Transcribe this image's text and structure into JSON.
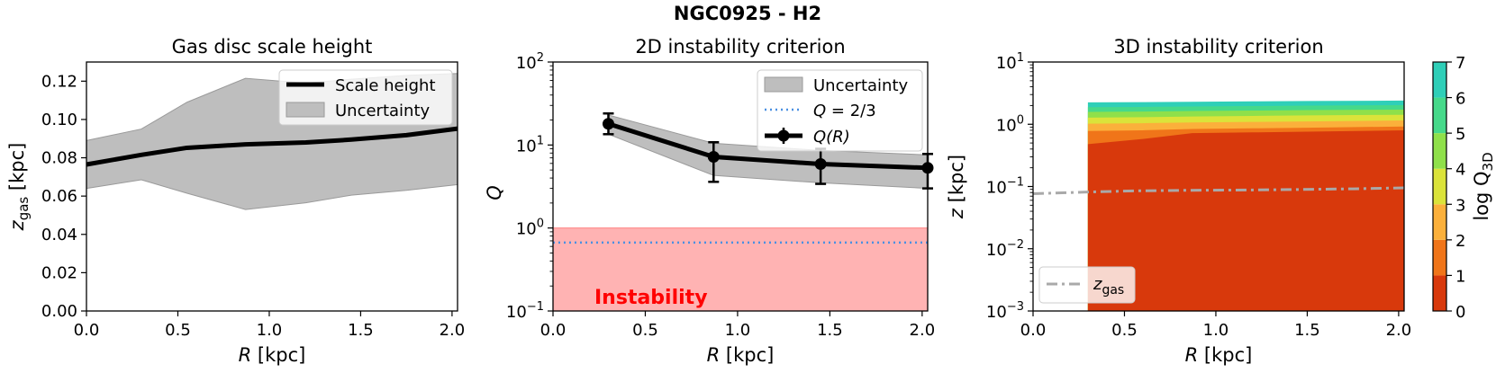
{
  "suptitle": "NGC0925 - H2",
  "chart_data": [
    {
      "type": "area",
      "title": "Gas disc scale height",
      "xlabel": "R [kpc]",
      "ylabel": "z_gas [kpc]",
      "xlim": [
        0.0,
        2.03
      ],
      "ylim": [
        0.0,
        0.13
      ],
      "xticks": [
        "0.0",
        "0.5",
        "1.0",
        "1.5",
        "2.0"
      ],
      "yticks": [
        "0.00",
        "0.02",
        "0.04",
        "0.06",
        "0.08",
        "0.10",
        "0.12"
      ],
      "legend": {
        "placement": "top-right",
        "entries": [
          "Scale height",
          "Uncertainty"
        ]
      },
      "series": [
        {
          "name": "Scale height",
          "x": [
            0.0,
            0.3,
            0.55,
            0.87,
            1.2,
            1.45,
            1.75,
            2.03
          ],
          "values": [
            0.0765,
            0.0815,
            0.0852,
            0.087,
            0.088,
            0.0895,
            0.0918,
            0.0952
          ]
        },
        {
          "name": "Uncertainty",
          "x": [
            0.0,
            0.3,
            0.55,
            0.87,
            1.2,
            1.45,
            1.75,
            2.03
          ],
          "upper": [
            0.089,
            0.095,
            0.109,
            0.1215,
            0.119,
            0.121,
            0.123,
            0.124
          ],
          "lower": [
            0.064,
            0.0685,
            0.0615,
            0.053,
            0.0565,
            0.0605,
            0.063,
            0.066
          ]
        }
      ]
    },
    {
      "type": "line",
      "title": "2D instability criterion",
      "xlabel": "R [kpc]",
      "ylabel": "Q",
      "yscale": "log",
      "xlim": [
        0.0,
        2.03
      ],
      "ylim": [
        0.1,
        100
      ],
      "xticks": [
        "0.0",
        "0.5",
        "1.0",
        "1.5",
        "2.0"
      ],
      "yticks": [
        {
          "value": 0.1,
          "base": "10",
          "exp": "−1"
        },
        {
          "value": 1,
          "base": "10",
          "exp": "0"
        },
        {
          "value": 10,
          "base": "10",
          "exp": "1"
        },
        {
          "value": 100,
          "base": "10",
          "exp": "2"
        }
      ],
      "legend": {
        "placement": "top-right",
        "entries": [
          "Uncertainty",
          "Q = 2/3",
          "Q(R)"
        ]
      },
      "series": [
        {
          "name": "Q(R)",
          "x": [
            0.3,
            0.87,
            1.45,
            2.03
          ],
          "values": [
            18,
            7.2,
            5.9,
            5.3
          ],
          "err_low": [
            13.5,
            3.6,
            3.4,
            3.0
          ],
          "err_high": [
            24,
            10.8,
            9.0,
            7.8
          ]
        },
        {
          "name": "Uncertainty",
          "x": [
            0.3,
            0.87,
            1.45,
            2.03
          ],
          "upper": [
            23,
            10.5,
            8.6,
            7.6
          ],
          "lower": [
            13.5,
            4.3,
            3.5,
            3.0
          ]
        },
        {
          "name": "Q = 2/3",
          "value": 0.667
        }
      ],
      "instability_band": [
        0.1,
        1.0
      ],
      "annotation": "Instability"
    },
    {
      "type": "heatmap",
      "title": "3D instability criterion",
      "xlabel": "R [kpc]",
      "ylabel": "z [kpc]",
      "yscale": "log",
      "xlim": [
        0.0,
        2.03
      ],
      "ylim": [
        0.001,
        10
      ],
      "xticks": [
        "0.0",
        "0.5",
        "1.0",
        "1.5",
        "2.0"
      ],
      "yticks": [
        {
          "value": 0.001,
          "base": "10",
          "exp": "−3"
        },
        {
          "value": 0.01,
          "base": "10",
          "exp": "−2"
        },
        {
          "value": 0.1,
          "base": "10",
          "exp": "−1"
        },
        {
          "value": 1,
          "base": "10",
          "exp": "0"
        },
        {
          "value": 10,
          "base": "10",
          "exp": "1"
        }
      ],
      "colorbar": {
        "label": "log Q_3D",
        "levels": [
          0,
          1,
          2,
          3,
          4,
          5,
          6,
          7
        ],
        "ticks": [
          "0",
          "1",
          "2",
          "3",
          "4",
          "5",
          "6",
          "7"
        ],
        "colors": [
          "#d8390c",
          "#f07519",
          "#fbb03b",
          "#dbe33a",
          "#8fe04a",
          "#46d98a",
          "#2fcfb8"
        ]
      },
      "contour_boundaries": {
        "x": [
          0.3,
          0.6,
          0.87,
          1.2,
          1.5,
          2.03
        ],
        "lev1": [
          0.48,
          0.58,
          0.72,
          0.74,
          0.76,
          0.8
        ],
        "lev2": [
          0.78,
          0.8,
          0.84,
          0.86,
          0.88,
          0.92
        ],
        "lev3": [
          1.02,
          1.04,
          1.07,
          1.09,
          1.11,
          1.15
        ],
        "lev4": [
          1.28,
          1.3,
          1.33,
          1.36,
          1.39,
          1.42
        ],
        "lev5": [
          1.58,
          1.6,
          1.63,
          1.66,
          1.69,
          1.72
        ],
        "lev6": [
          1.88,
          1.9,
          1.93,
          1.96,
          1.99,
          2.03
        ],
        "lev7": [
          2.25,
          2.27,
          2.3,
          2.33,
          2.36,
          2.4
        ]
      },
      "zgas_line": {
        "name": "z_gas",
        "x": [
          0.0,
          0.3,
          0.55,
          0.87,
          1.2,
          1.45,
          1.75,
          2.03
        ],
        "values": [
          0.0765,
          0.0815,
          0.0852,
          0.087,
          0.088,
          0.0895,
          0.0918,
          0.0952
        ]
      },
      "legend": {
        "placement": "bottom-left",
        "entries": [
          "z_gas"
        ]
      }
    }
  ],
  "colors": {
    "band": "#bebebe",
    "band_edge": "#9a9a9a",
    "instability": "#ffb3b3",
    "instability_text": "#ff0000",
    "dotted": "#4a90e2",
    "zgas": "#a9a9a9"
  }
}
